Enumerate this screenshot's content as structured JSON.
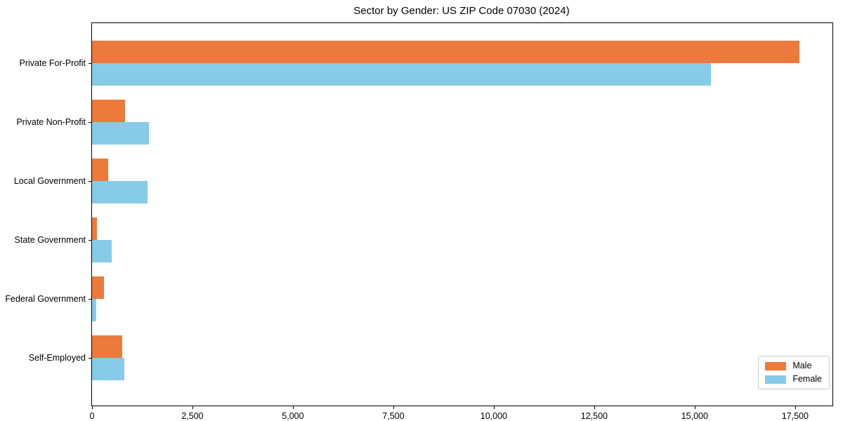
{
  "title": "Sector by Gender: US ZIP Code 07030 (2024)",
  "chart_data": {
    "type": "bar",
    "orientation": "horizontal",
    "title": "Sector by Gender: US ZIP Code 07030 (2024)",
    "xlabel": "",
    "ylabel": "",
    "categories": [
      "Private For-Profit",
      "Private Non-Profit",
      "Local Government",
      "State Government",
      "Federal Government",
      "Self-Employed"
    ],
    "series": [
      {
        "name": "Male",
        "color": "#ec7a3c",
        "values": [
          17600,
          820,
          400,
          120,
          300,
          750
        ]
      },
      {
        "name": "Female",
        "color": "#86cbe7",
        "values": [
          15400,
          1420,
          1380,
          490,
          110,
          800
        ]
      }
    ],
    "xlim": [
      0,
      18430
    ],
    "xticks": [
      0,
      2500,
      5000,
      7500,
      10000,
      12500,
      15000,
      17500
    ],
    "xtick_labels": [
      "0",
      "2,500",
      "5,000",
      "7,500",
      "10,000",
      "12,500",
      "15,000",
      "17,500"
    ],
    "legend_position": "lower right",
    "grid": false,
    "colors": {
      "spine": "#000000",
      "background": "#ffffff",
      "legend_border": "#c9c9c9"
    }
  }
}
